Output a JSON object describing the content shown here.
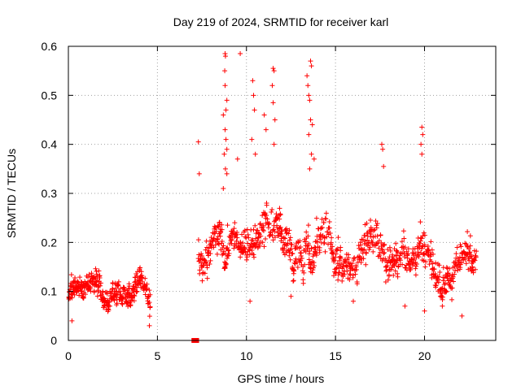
{
  "chart_data": {
    "type": "scatter",
    "title": "Day 219 of 2024, SRMTID for receiver karl",
    "xlabel": "GPS time / hours",
    "ylabel": "SRMTID / TECUs",
    "xlim": [
      0,
      24
    ],
    "ylim": [
      0,
      0.6
    ],
    "x_ticks": [
      0,
      5,
      10,
      15,
      20
    ],
    "x_tick_labels": [
      "0",
      "5",
      "10",
      "15",
      "20"
    ],
    "y_ticks": [
      0,
      0.1,
      0.2,
      0.3,
      0.4,
      0.5,
      0.6
    ],
    "y_tick_labels": [
      "0",
      "0.1",
      "0.2",
      "0.3",
      "0.4",
      "0.5",
      "0.6"
    ],
    "grid": true,
    "marker": "plus",
    "color": "#ff0000",
    "gap_markers": [
      {
        "x": 7.05,
        "y": 0.0
      },
      {
        "x": 7.2,
        "y": 0.0
      }
    ],
    "outliers": [
      {
        "x": 7.3,
        "y": 0.405
      },
      {
        "x": 7.35,
        "y": 0.34
      },
      {
        "x": 8.8,
        "y": 0.585
      },
      {
        "x": 8.82,
        "y": 0.58
      },
      {
        "x": 8.78,
        "y": 0.55
      },
      {
        "x": 8.8,
        "y": 0.52
      },
      {
        "x": 8.85,
        "y": 0.47
      },
      {
        "x": 8.9,
        "y": 0.49
      },
      {
        "x": 8.7,
        "y": 0.46
      },
      {
        "x": 8.8,
        "y": 0.43
      },
      {
        "x": 8.85,
        "y": 0.41
      },
      {
        "x": 8.9,
        "y": 0.39
      },
      {
        "x": 8.75,
        "y": 0.38
      },
      {
        "x": 8.82,
        "y": 0.35
      },
      {
        "x": 8.9,
        "y": 0.34
      },
      {
        "x": 8.7,
        "y": 0.31
      },
      {
        "x": 9.5,
        "y": 0.37
      },
      {
        "x": 9.65,
        "y": 0.585
      },
      {
        "x": 10.35,
        "y": 0.53
      },
      {
        "x": 10.4,
        "y": 0.5
      },
      {
        "x": 10.45,
        "y": 0.47
      },
      {
        "x": 10.3,
        "y": 0.41
      },
      {
        "x": 10.5,
        "y": 0.38
      },
      {
        "x": 11.5,
        "y": 0.555
      },
      {
        "x": 11.55,
        "y": 0.55
      },
      {
        "x": 11.45,
        "y": 0.52
      },
      {
        "x": 11.5,
        "y": 0.485
      },
      {
        "x": 11.6,
        "y": 0.45
      },
      {
        "x": 11.55,
        "y": 0.4
      },
      {
        "x": 11.0,
        "y": 0.46
      },
      {
        "x": 11.1,
        "y": 0.43
      },
      {
        "x": 13.6,
        "y": 0.57
      },
      {
        "x": 13.65,
        "y": 0.56
      },
      {
        "x": 13.4,
        "y": 0.54
      },
      {
        "x": 13.45,
        "y": 0.52
      },
      {
        "x": 13.5,
        "y": 0.5
      },
      {
        "x": 13.55,
        "y": 0.49
      },
      {
        "x": 13.6,
        "y": 0.45
      },
      {
        "x": 13.7,
        "y": 0.44
      },
      {
        "x": 13.5,
        "y": 0.42
      },
      {
        "x": 13.65,
        "y": 0.38
      },
      {
        "x": 13.8,
        "y": 0.37
      },
      {
        "x": 13.55,
        "y": 0.35
      },
      {
        "x": 17.6,
        "y": 0.4
      },
      {
        "x": 17.65,
        "y": 0.39
      },
      {
        "x": 17.7,
        "y": 0.355
      },
      {
        "x": 19.85,
        "y": 0.435
      },
      {
        "x": 19.9,
        "y": 0.42
      },
      {
        "x": 19.8,
        "y": 0.4
      },
      {
        "x": 19.85,
        "y": 0.38
      },
      {
        "x": 10.2,
        "y": 0.08
      },
      {
        "x": 12.5,
        "y": 0.09
      },
      {
        "x": 16.0,
        "y": 0.08
      },
      {
        "x": 18.9,
        "y": 0.07
      },
      {
        "x": 20.0,
        "y": 0.06
      },
      {
        "x": 21.0,
        "y": 0.07
      },
      {
        "x": 22.1,
        "y": 0.05
      },
      {
        "x": 4.55,
        "y": 0.03
      },
      {
        "x": 0.2,
        "y": 0.04
      }
    ],
    "segments": [
      {
        "t0": 0.0,
        "t1": 4.6,
        "step": 0.02,
        "levels": [
          [
            0.0,
            0.085
          ],
          [
            0.6,
            0.12
          ],
          [
            1.2,
            0.1
          ],
          [
            1.6,
            0.125
          ],
          [
            2.2,
            0.09
          ],
          [
            3.0,
            0.095
          ],
          [
            3.6,
            0.1
          ],
          [
            4.0,
            0.115
          ],
          [
            4.3,
            0.11
          ],
          [
            4.6,
            0.07
          ]
        ],
        "spread": 0.035
      },
      {
        "t0": 7.3,
        "t1": 22.9,
        "step": 0.025,
        "levels": [
          [
            7.3,
            0.17
          ],
          [
            7.8,
            0.15
          ],
          [
            8.2,
            0.23
          ],
          [
            8.8,
            0.19
          ],
          [
            9.5,
            0.22
          ],
          [
            10.2,
            0.19
          ],
          [
            11.0,
            0.23
          ],
          [
            11.8,
            0.22
          ],
          [
            12.5,
            0.2
          ],
          [
            13.2,
            0.17
          ],
          [
            14.0,
            0.2
          ],
          [
            14.5,
            0.22
          ],
          [
            15.0,
            0.14
          ],
          [
            15.7,
            0.14
          ],
          [
            16.5,
            0.16
          ],
          [
            17.3,
            0.2
          ],
          [
            18.0,
            0.15
          ],
          [
            18.8,
            0.17
          ],
          [
            19.5,
            0.17
          ],
          [
            20.0,
            0.19
          ],
          [
            20.6,
            0.13
          ],
          [
            21.5,
            0.12
          ],
          [
            22.2,
            0.16
          ],
          [
            22.9,
            0.16
          ]
        ],
        "spread": 0.055
      }
    ]
  }
}
